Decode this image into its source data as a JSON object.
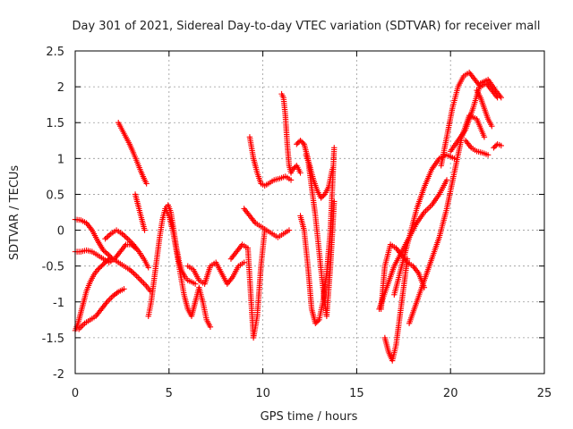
{
  "chart_data": {
    "type": "scatter",
    "title": "Day 301 of 2021, Sidereal Day-to-day VTEC variation (SDTVAR) for receiver mall",
    "xlabel": "GPS time / hours",
    "ylabel": "SDTVAR / TECUs",
    "xlim": [
      0,
      25
    ],
    "ylim": [
      -2,
      2.5
    ],
    "xticks": [
      0,
      5,
      10,
      15,
      20,
      25
    ],
    "xtick_labels": [
      "0",
      "5",
      "10",
      "15",
      "20",
      "25"
    ],
    "yticks": [
      -2,
      -1.5,
      -1,
      -0.5,
      0,
      0.5,
      1,
      1.5,
      2,
      2.5
    ],
    "ytick_labels": [
      "-2",
      "-1.5",
      "-1",
      "-0.5",
      "0",
      "0.5",
      "1",
      "1.5",
      "2",
      "2.5"
    ],
    "grid": true,
    "marker": "+",
    "color": "#ff0000",
    "series": [
      {
        "x": [
          0.0,
          0.3,
          0.6,
          0.9,
          1.2,
          1.5,
          1.8,
          2.0,
          2.3,
          2.6,
          2.9,
          3.2,
          3.5,
          3.8,
          4.0
        ],
        "y": [
          0.15,
          0.14,
          0.1,
          0.0,
          -0.15,
          -0.28,
          -0.35,
          -0.4,
          -0.45,
          -0.5,
          -0.55,
          -0.62,
          -0.7,
          -0.78,
          -0.85
        ]
      },
      {
        "x": [
          0.0,
          0.3,
          0.6,
          0.9,
          1.2,
          1.5,
          1.8,
          2.1,
          2.4,
          2.7,
          3.0,
          3.2
        ],
        "y": [
          -0.3,
          -0.3,
          -0.28,
          -0.3,
          -0.35,
          -0.4,
          -0.45,
          -0.4,
          -0.3,
          -0.2,
          -0.2,
          -0.25
        ]
      },
      {
        "x": [
          0.0,
          0.15,
          0.3,
          0.45,
          0.6,
          0.8,
          1.0,
          1.2,
          1.4,
          1.6,
          1.8
        ],
        "y": [
          -1.4,
          -1.3,
          -1.15,
          -1.0,
          -0.85,
          -0.72,
          -0.62,
          -0.55,
          -0.5,
          -0.45,
          -0.4
        ]
      },
      {
        "x": [
          0.2,
          0.5,
          0.8,
          1.1,
          1.4,
          1.7,
          2.0,
          2.3,
          2.6
        ],
        "y": [
          -1.38,
          -1.3,
          -1.25,
          -1.2,
          -1.1,
          -1.0,
          -0.92,
          -0.86,
          -0.82
        ]
      },
      {
        "x": [
          2.3,
          2.5,
          2.7,
          2.9,
          3.1,
          3.3,
          3.5,
          3.7,
          3.8
        ],
        "y": [
          1.5,
          1.4,
          1.3,
          1.2,
          1.08,
          0.95,
          0.82,
          0.7,
          0.65
        ]
      },
      {
        "x": [
          3.2,
          3.3,
          3.4,
          3.5,
          3.6,
          3.7
        ],
        "y": [
          0.5,
          0.4,
          0.3,
          0.2,
          0.1,
          0.0
        ]
      },
      {
        "x": [
          1.6,
          1.9,
          2.2,
          2.5,
          2.8,
          3.1,
          3.4,
          3.7,
          3.9
        ],
        "y": [
          -0.12,
          -0.05,
          0.0,
          -0.05,
          -0.12,
          -0.2,
          -0.3,
          -0.42,
          -0.52
        ]
      },
      {
        "x": [
          3.9,
          4.05,
          4.2,
          4.35,
          4.5,
          4.65,
          4.8,
          4.95,
          5.1,
          5.25,
          5.4,
          5.55,
          5.7,
          5.85,
          6.0,
          6.2,
          6.4
        ],
        "y": [
          -1.2,
          -1.0,
          -0.7,
          -0.4,
          -0.1,
          0.15,
          0.3,
          0.35,
          0.25,
          0.0,
          -0.25,
          -0.45,
          -0.58,
          -0.65,
          -0.7,
          -0.72,
          -0.75
        ]
      },
      {
        "x": [
          4.8,
          5.0,
          5.2,
          5.4,
          5.6,
          5.8,
          6.0,
          6.2,
          6.4,
          6.6,
          6.8,
          7.0,
          7.2
        ],
        "y": [
          0.3,
          0.2,
          0.0,
          -0.3,
          -0.6,
          -0.9,
          -1.1,
          -1.2,
          -1.0,
          -0.8,
          -1.0,
          -1.25,
          -1.35
        ]
      },
      {
        "x": [
          6.0,
          6.3,
          6.6,
          6.9,
          7.2,
          7.5,
          7.8,
          8.1,
          8.4,
          8.7,
          9.0
        ],
        "y": [
          -0.5,
          -0.55,
          -0.7,
          -0.75,
          -0.5,
          -0.45,
          -0.6,
          -0.75,
          -0.65,
          -0.5,
          -0.45
        ]
      },
      {
        "x": [
          8.3,
          8.6,
          8.9,
          9.2,
          9.5,
          9.7,
          9.9,
          10.1
        ],
        "y": [
          -0.4,
          -0.3,
          -0.2,
          -0.25,
          -1.5,
          -1.2,
          -0.5,
          0.0
        ]
      },
      {
        "x": [
          9.3,
          9.5,
          9.7,
          9.9,
          10.1,
          10.3,
          10.6,
          10.9,
          11.2,
          11.5
        ],
        "y": [
          1.3,
          1.0,
          0.8,
          0.65,
          0.62,
          0.65,
          0.7,
          0.72,
          0.75,
          0.7
        ]
      },
      {
        "x": [
          9.0,
          9.3,
          9.6,
          9.9,
          10.2,
          10.5,
          10.8,
          11.1,
          11.4
        ],
        "y": [
          0.3,
          0.2,
          0.1,
          0.05,
          0.0,
          -0.05,
          -0.1,
          -0.05,
          0.0
        ]
      },
      {
        "x": [
          11.0,
          11.1,
          11.2,
          11.3,
          11.4,
          11.5,
          11.6,
          11.8,
          12.0
        ],
        "y": [
          1.9,
          1.85,
          1.6,
          1.2,
          0.9,
          0.8,
          0.85,
          0.9,
          0.8
        ]
      },
      {
        "x": [
          11.8,
          12.0,
          12.2,
          12.4,
          12.6,
          12.8,
          13.0,
          13.2,
          13.4,
          13.6,
          13.8
        ],
        "y": [
          1.2,
          1.25,
          1.2,
          1.0,
          0.6,
          0.2,
          -0.3,
          -0.8,
          -1.2,
          -0.5,
          0.4
        ]
      },
      {
        "x": [
          12.0,
          12.2,
          12.4,
          12.6,
          12.8,
          13.0,
          13.2,
          13.4,
          13.6,
          13.8
        ],
        "y": [
          0.2,
          0.0,
          -0.5,
          -1.1,
          -1.3,
          -1.25,
          -1.0,
          -0.6,
          0.0,
          1.15
        ]
      },
      {
        "x": [
          12.3,
          12.5,
          12.7,
          12.9,
          13.1,
          13.3,
          13.5,
          13.7
        ],
        "y": [
          1.05,
          0.9,
          0.7,
          0.55,
          0.45,
          0.5,
          0.6,
          0.85
        ]
      },
      {
        "x": [
          16.5,
          16.7,
          16.9,
          17.1,
          17.3,
          17.5,
          17.7
        ],
        "y": [
          -1.5,
          -1.7,
          -1.82,
          -1.6,
          -1.2,
          -0.8,
          -0.4
        ]
      },
      {
        "x": [
          16.3,
          16.5,
          16.8,
          17.1,
          17.4,
          17.7,
          18.0,
          18.3,
          18.6
        ],
        "y": [
          -1.1,
          -0.5,
          -0.2,
          -0.25,
          -0.35,
          -0.45,
          -0.5,
          -0.6,
          -0.8
        ]
      },
      {
        "x": [
          17.0,
          17.4,
          17.8,
          18.2,
          18.6,
          19.0,
          19.4,
          19.8,
          20.2
        ],
        "y": [
          -0.9,
          -0.5,
          -0.1,
          0.3,
          0.6,
          0.85,
          1.0,
          1.05,
          1.0
        ]
      },
      {
        "x": [
          16.2,
          16.6,
          17.0,
          17.4,
          17.8,
          18.2,
          18.6,
          19.0,
          19.4,
          19.8
        ],
        "y": [
          -1.1,
          -0.8,
          -0.5,
          -0.3,
          -0.1,
          0.1,
          0.25,
          0.35,
          0.5,
          0.7
        ]
      },
      {
        "x": [
          17.8,
          18.2,
          18.6,
          19.0,
          19.4,
          19.8,
          20.2,
          20.6,
          21.0,
          21.4,
          21.8
        ],
        "y": [
          -1.3,
          -1.0,
          -0.7,
          -0.4,
          -0.1,
          0.3,
          0.8,
          1.3,
          1.6,
          1.55,
          1.3
        ]
      },
      {
        "x": [
          19.5,
          19.8,
          20.1,
          20.4,
          20.7,
          21.0,
          21.3,
          21.6,
          21.9,
          22.2,
          22.5
        ],
        "y": [
          0.9,
          1.3,
          1.7,
          2.0,
          2.15,
          2.2,
          2.1,
          2.0,
          2.05,
          1.95,
          1.85
        ]
      },
      {
        "x": [
          20.0,
          20.4,
          20.8,
          21.2,
          21.6,
          22.0,
          22.4,
          22.7
        ],
        "y": [
          1.1,
          1.25,
          1.4,
          1.7,
          2.05,
          2.1,
          1.95,
          1.85
        ]
      },
      {
        "x": [
          20.8,
          21.1,
          21.4,
          21.7,
          22.0
        ],
        "y": [
          1.25,
          1.15,
          1.1,
          1.08,
          1.05
        ]
      },
      {
        "x": [
          21.4,
          21.6,
          21.8,
          22.0,
          22.2
        ],
        "y": [
          1.95,
          1.85,
          1.7,
          1.55,
          1.45
        ]
      },
      {
        "x": [
          22.3,
          22.5,
          22.7
        ],
        "y": [
          1.15,
          1.2,
          1.18
        ]
      }
    ]
  }
}
